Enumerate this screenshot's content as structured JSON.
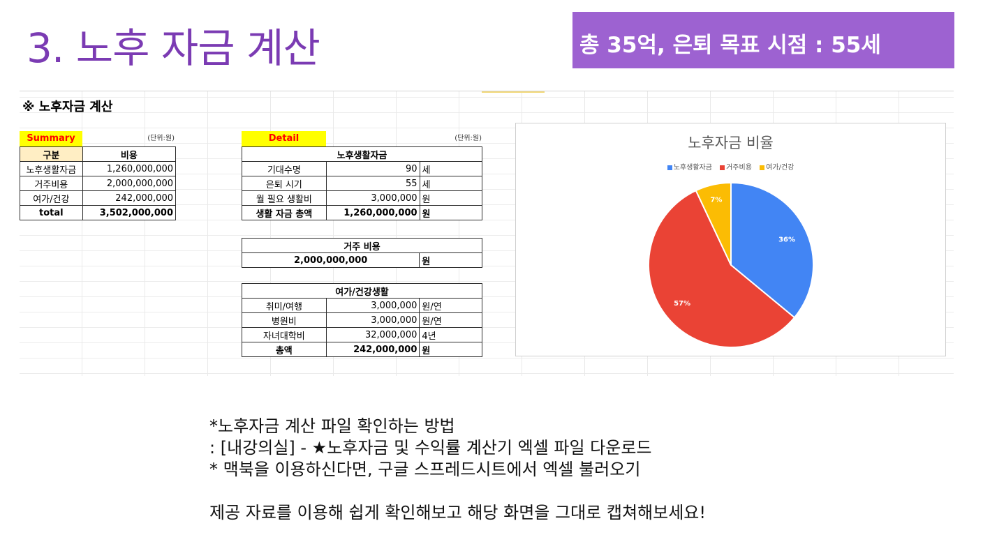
{
  "slide": {
    "title": "3. 노후 자금 계산",
    "banner": "총 35억, 은퇴 목표 시점  : 55세"
  },
  "sheet": {
    "title": "※ 노후자금 계산",
    "summary": {
      "label": "Summary",
      "unit": "(단위:원)",
      "headers": [
        "구분",
        "비용"
      ],
      "rows": [
        {
          "item": "노후생활자금",
          "value": "1,260,000,000"
        },
        {
          "item": "거주비용",
          "value": "2,000,000,000"
        },
        {
          "item": "여가/건강",
          "value": "242,000,000"
        }
      ],
      "total": {
        "item": "total",
        "value": "3,502,000,000"
      }
    },
    "detail": {
      "label": "Detail",
      "unit": "(단위:원)",
      "living": {
        "header": "노후생활자금",
        "rows": [
          {
            "item": "기대수명",
            "value": "90",
            "unit": "세"
          },
          {
            "item": "은퇴 시기",
            "value": "55",
            "unit": "세"
          },
          {
            "item": "월 필요 생활비",
            "value": "3,000,000",
            "unit": "원"
          }
        ],
        "total": {
          "item": "생활 자금 총액",
          "value": "1,260,000,000",
          "unit": "원"
        }
      },
      "housing": {
        "header": "거주 비용",
        "value": "2,000,000,000",
        "unit": "원"
      },
      "leisure": {
        "header": "여가/건강생활",
        "rows": [
          {
            "item": "취미/여행",
            "value": "3,000,000",
            "unit": "원/연"
          },
          {
            "item": "병원비",
            "value": "3,000,000",
            "unit": "원/연"
          },
          {
            "item": "자녀대학비",
            "value": "32,000,000",
            "unit": "4년"
          }
        ],
        "total": {
          "item": "총액",
          "value": "242,000,000",
          "unit": "원"
        }
      }
    }
  },
  "chart_data": {
    "type": "pie",
    "title": "노후자금 비율",
    "legend_position": "top",
    "series": [
      {
        "name": "노후생활자금",
        "value": 36,
        "label": "36%",
        "color": "#4285f4"
      },
      {
        "name": "거주비용",
        "value": 57,
        "label": "57%",
        "color": "#ea4335"
      },
      {
        "name": "여가/건강",
        "value": 7,
        "label": "7%",
        "color": "#fbbc04"
      }
    ]
  },
  "notes": [
    "*노후자금 계산 파일 확인하는 방법",
    ": [내강의실] - ★노후자금 및 수익률 계산기 엑셀 파일 다운로드",
    "* 맥북을 이용하신다면, 구글 스프레드시트에서 엑셀 불러오기",
    "",
    "제공 자료를 이용해 쉽게 확인해보고 해당 화면을 그대로 캡쳐해보세요!"
  ]
}
